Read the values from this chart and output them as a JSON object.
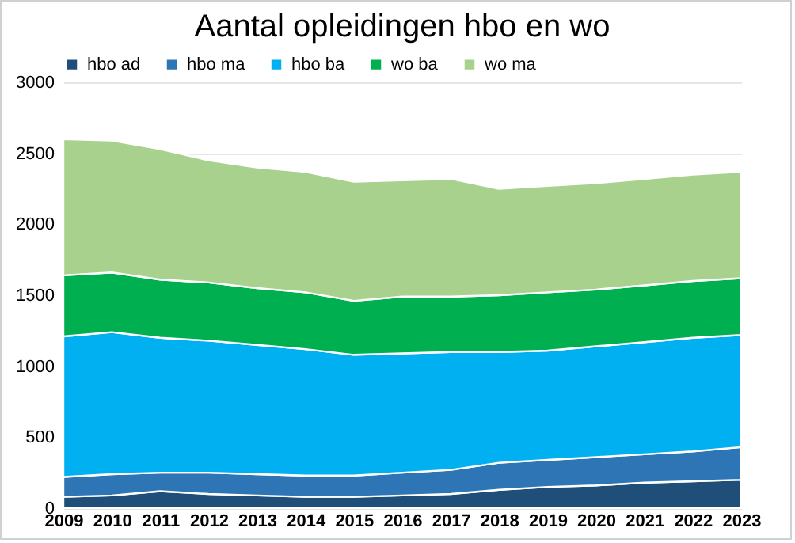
{
  "chart_data": {
    "type": "area",
    "title": "Aantal opleidingen hbo en wo",
    "stacked": true,
    "legend": "top",
    "grid": "y",
    "categories": [
      "2009",
      "2010",
      "2011",
      "2012",
      "2013",
      "2014",
      "2015",
      "2016",
      "2017",
      "2018",
      "2019",
      "2020",
      "2021",
      "2022",
      "2023"
    ],
    "ylim": [
      0,
      3000
    ],
    "yticks": [
      0,
      500,
      1000,
      1500,
      2000,
      2500,
      3000
    ],
    "series": [
      {
        "name": "hbo ad",
        "color": "#1f4e79",
        "values": [
          80,
          90,
          120,
          100,
          90,
          80,
          80,
          90,
          100,
          130,
          150,
          160,
          180,
          190,
          200
        ]
      },
      {
        "name": "hbo ma",
        "color": "#2e75b6",
        "values": [
          140,
          150,
          130,
          150,
          150,
          150,
          150,
          160,
          170,
          190,
          190,
          200,
          200,
          210,
          230
        ]
      },
      {
        "name": "hbo ba",
        "color": "#00b0f0",
        "values": [
          990,
          1000,
          950,
          930,
          910,
          890,
          850,
          840,
          830,
          780,
          770,
          780,
          790,
          800,
          790
        ]
      },
      {
        "name": "wo ba",
        "color": "#00b050",
        "values": [
          430,
          420,
          410,
          410,
          400,
          400,
          380,
          400,
          390,
          400,
          410,
          400,
          400,
          400,
          400
        ]
      },
      {
        "name": "wo ma",
        "color": "#a9d18e",
        "values": [
          960,
          930,
          920,
          860,
          850,
          850,
          840,
          820,
          830,
          750,
          750,
          750,
          750,
          750,
          750
        ]
      }
    ]
  }
}
